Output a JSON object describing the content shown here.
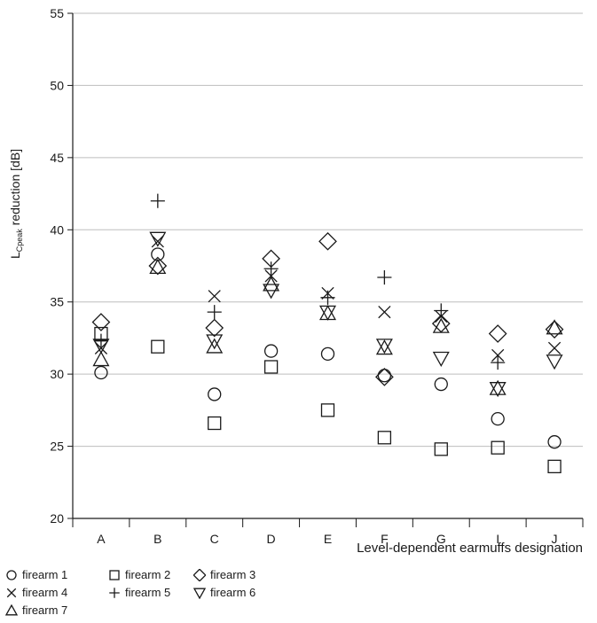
{
  "chart_data": {
    "type": "scatter",
    "ylabel_main": "L",
    "ylabel_sub": "Cpeak",
    "ylabel_rest": " reduction [dB]",
    "xlabel": "Level-dependent earmuffs designation",
    "categories": [
      "A",
      "B",
      "C",
      "D",
      "E",
      "F",
      "G",
      "I",
      "J"
    ],
    "ylim": [
      20,
      55
    ],
    "yticks": [
      20,
      25,
      30,
      35,
      40,
      45,
      50,
      55
    ],
    "grid": true,
    "legend_position": "bottom-left",
    "series": [
      {
        "name": "firearm 1",
        "marker": "circle",
        "values": [
          30.1,
          38.3,
          28.6,
          31.6,
          31.4,
          29.9,
          29.3,
          26.9,
          25.3
        ]
      },
      {
        "name": "firearm 2",
        "marker": "square",
        "values": [
          32.8,
          31.9,
          26.6,
          30.5,
          27.5,
          25.6,
          24.8,
          24.9,
          23.6
        ]
      },
      {
        "name": "firearm 3",
        "marker": "diamond",
        "values": [
          33.6,
          37.5,
          33.2,
          38.0,
          39.2,
          29.8,
          33.5,
          32.8,
          33.1
        ]
      },
      {
        "name": "firearm 4",
        "marker": "x",
        "values": [
          31.8,
          39.2,
          35.4,
          36.8,
          35.6,
          34.3,
          34.0,
          31.3,
          31.8
        ]
      },
      {
        "name": "firearm 5",
        "marker": "plus",
        "values": [
          32.3,
          42.0,
          34.3,
          37.3,
          35.3,
          36.7,
          34.4,
          30.8,
          null
        ]
      },
      {
        "name": "firearm 6",
        "marker": "triangle-down",
        "values": [
          32.0,
          39.4,
          32.3,
          35.8,
          34.3,
          32.0,
          31.1,
          29.0,
          30.9
        ]
      },
      {
        "name": "firearm 7",
        "marker": "triangle-up",
        "values": [
          31.0,
          37.4,
          31.9,
          36.2,
          34.2,
          31.8,
          33.3,
          29.0,
          33.2
        ]
      }
    ]
  }
}
